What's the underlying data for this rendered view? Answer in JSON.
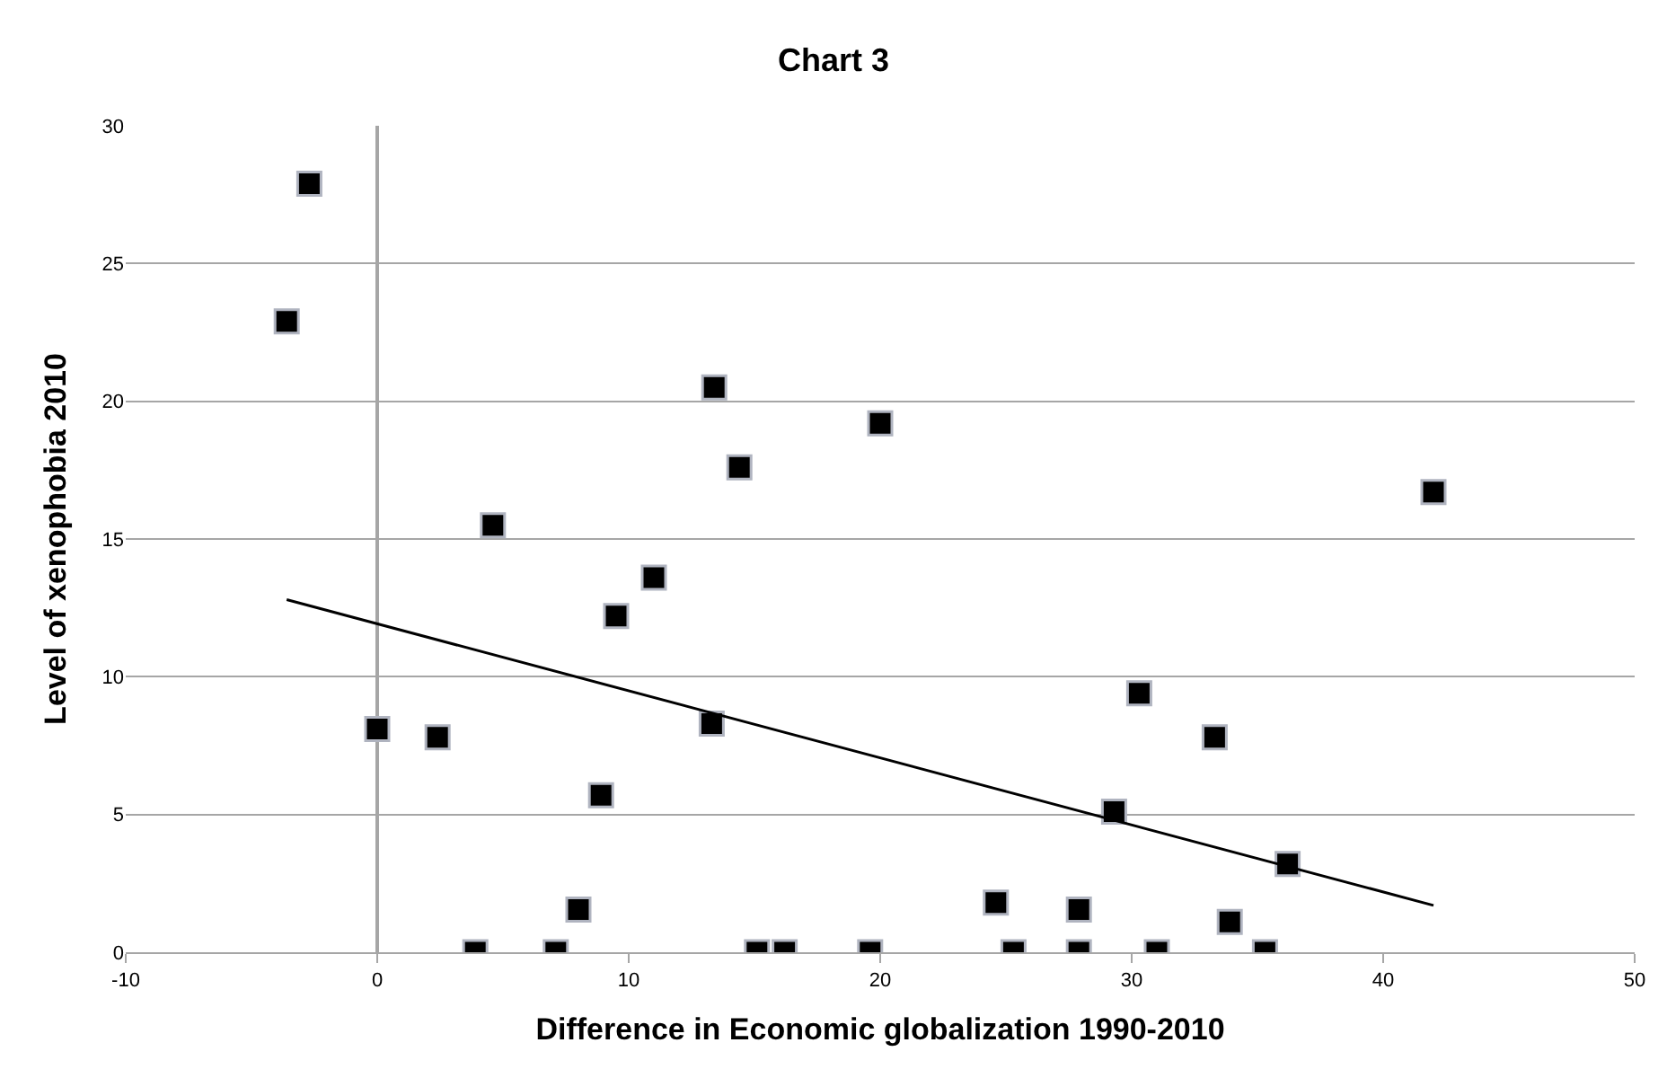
{
  "chart_data": {
    "type": "scatter",
    "title": "Chart 3",
    "xlabel": "Difference in Economic globalization 1990-2010",
    "ylabel": "Level of xenophobia 2010",
    "series": [
      {
        "color": "#000000",
        "marker": "square",
        "x": [
          -2.7,
          -3.6,
          0,
          2.4,
          4.6,
          3.9,
          7.1,
          8.0,
          8.9,
          9.5,
          11.0,
          13.4,
          13.3,
          14.4,
          15.1,
          16.2,
          20.0,
          19.6,
          42.0,
          30.3,
          33.3,
          29.3,
          36.2,
          24.6,
          27.9,
          33.9,
          25.3,
          27.9,
          31.0,
          35.3
        ],
        "values": [
          27.9,
          22.9,
          8.1,
          7.8,
          15.5,
          0,
          0,
          1.55,
          5.7,
          12.2,
          13.6,
          20.5,
          8.3,
          17.6,
          0,
          0,
          19.2,
          0,
          16.7,
          9.4,
          7.8,
          5.1,
          3.2,
          1.8,
          1.55,
          1.1,
          0,
          0,
          0,
          0
        ]
      },
      {
        "type": "line",
        "color": "#000000",
        "x": [
          -3.6,
          42.0
        ],
        "values": [
          12.8,
          1.7
        ]
      }
    ],
    "xlim": [
      -10,
      50
    ],
    "xticks": [
      -10,
      0,
      10,
      20,
      30,
      40,
      50
    ],
    "ylim": [
      0,
      30
    ],
    "yticks": [
      0,
      5,
      10,
      15,
      20,
      25,
      30
    ],
    "grid": "y"
  }
}
